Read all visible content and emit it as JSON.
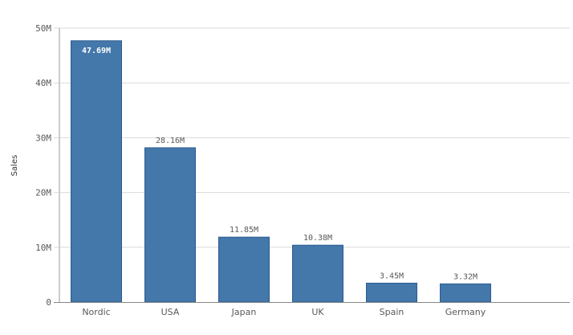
{
  "chart_data": {
    "type": "bar",
    "title": "",
    "xlabel": "",
    "ylabel": "Sales",
    "categories": [
      "Nordic",
      "USA",
      "Japan",
      "UK",
      "Spain",
      "Germany"
    ],
    "values": [
      47.69,
      28.16,
      11.85,
      10.38,
      3.45,
      3.32
    ],
    "value_labels": [
      "47.69M",
      "28.16M",
      "11.85M",
      "10.38M",
      "3.45M",
      "3.32M"
    ],
    "unit": "M",
    "ylim": [
      0,
      50
    ],
    "yticks": [
      0,
      10,
      20,
      30,
      40,
      50
    ],
    "ytick_labels": [
      "0",
      "10M",
      "20M",
      "30M",
      "40M",
      "50M"
    ],
    "grid": true,
    "bar_color": "#4477aa",
    "bar_edge_color": "#2b5c91"
  }
}
